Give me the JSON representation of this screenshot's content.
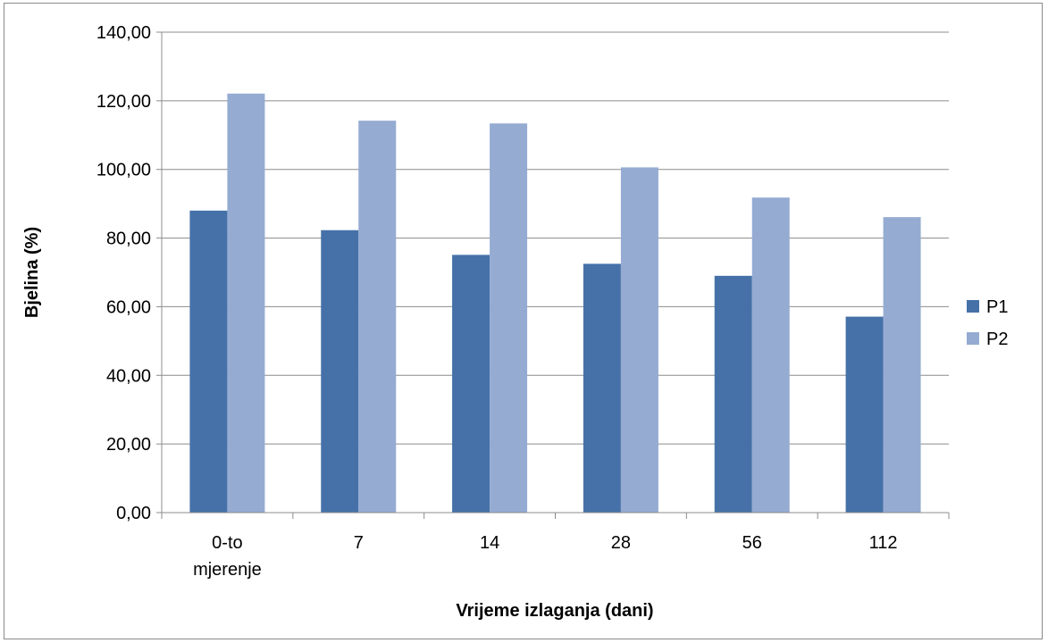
{
  "chart_data": {
    "type": "bar",
    "categories": [
      [
        "0-to",
        "mjerenje"
      ],
      [
        "7"
      ],
      [
        "14"
      ],
      [
        "28"
      ],
      [
        "56"
      ],
      [
        "112"
      ]
    ],
    "series": [
      {
        "name": "P1",
        "color": "#4571a8",
        "values": [
          88.0,
          82.3,
          75.1,
          72.5,
          69.0,
          57.1
        ]
      },
      {
        "name": "P2",
        "color": "#95abd2",
        "values": [
          122.1,
          114.2,
          113.4,
          100.6,
          91.8,
          86.1
        ]
      }
    ],
    "xlabel": "Vrijeme izlaganja (dani)",
    "ylabel": "Bjelina (%)",
    "ylim": [
      0,
      140
    ],
    "yticks": [
      "0,00",
      "20,00",
      "40,00",
      "60,00",
      "80,00",
      "100,00",
      "120,00",
      "140,00"
    ],
    "grid": true,
    "legend_position": "right"
  }
}
